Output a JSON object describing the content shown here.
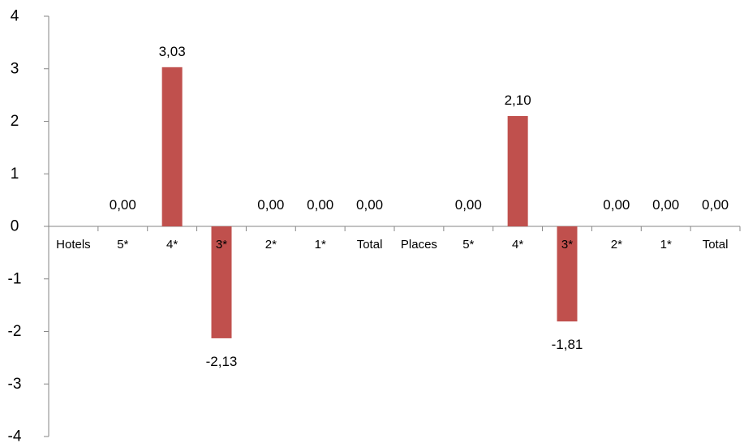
{
  "chart_data": {
    "type": "bar",
    "title": "",
    "xlabel": "",
    "ylabel": "",
    "ylim": [
      -4,
      4
    ],
    "yticks": [
      "4",
      "3",
      "2",
      "1",
      "0",
      "-1",
      "-2",
      "-3",
      "-4"
    ],
    "grid": false,
    "legend": "none",
    "bar_color": "#C0504D",
    "categories": [
      "Hotels",
      "5*",
      "4*",
      "3*",
      "2*",
      "1*",
      "Total",
      "Places",
      "5*",
      "4*",
      "3*",
      "2*",
      "1*",
      "Total"
    ],
    "values": [
      null,
      0.0,
      3.03,
      -2.13,
      0.0,
      0.0,
      0.0,
      null,
      0.0,
      2.1,
      -1.81,
      0.0,
      0.0,
      0.0
    ],
    "data_labels": [
      "",
      "0,00",
      "3,03",
      "-2,13",
      "0,00",
      "0,00",
      "0,00",
      "",
      "0,00",
      "2,10",
      "-1,81",
      "0,00",
      "0,00",
      "0,00"
    ]
  }
}
